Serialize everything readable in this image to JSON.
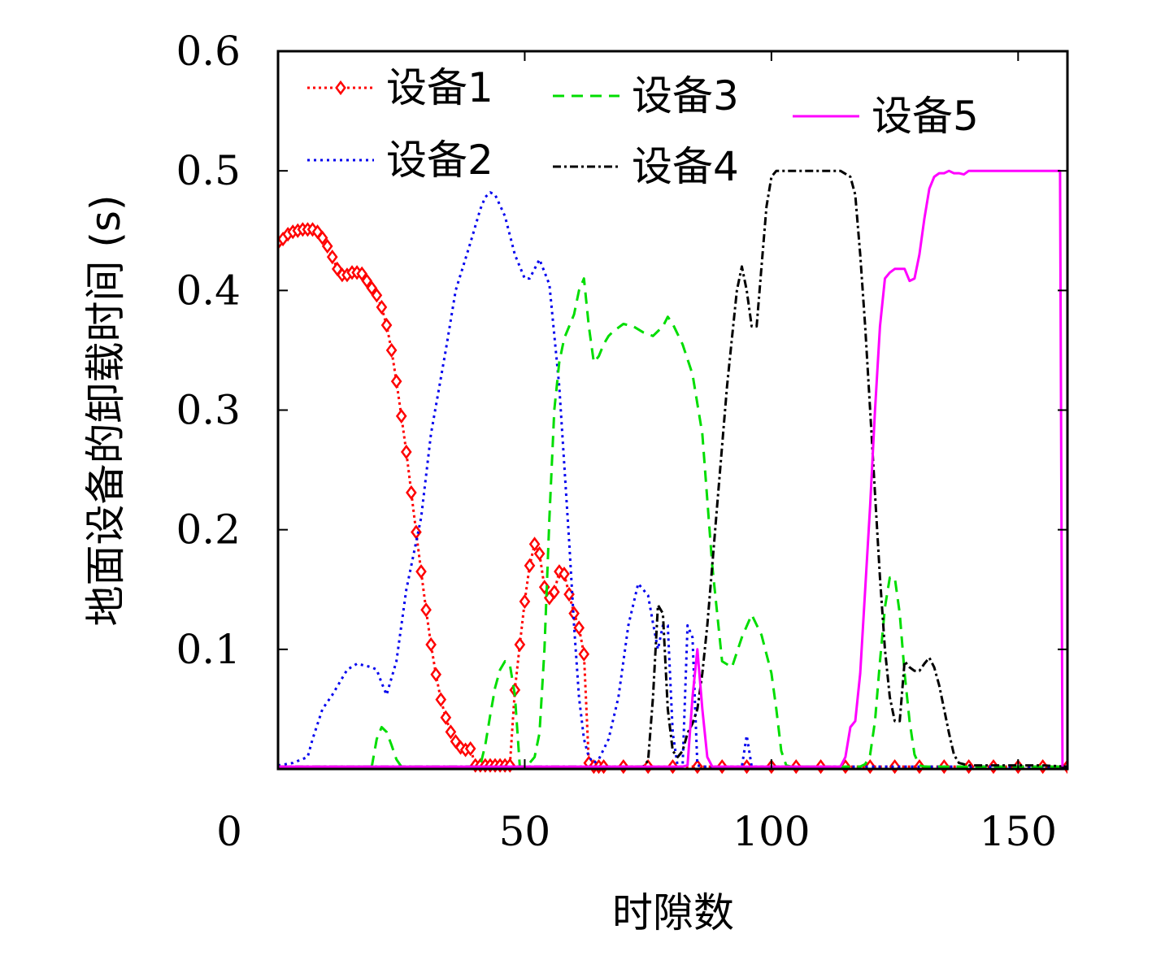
{
  "chart_data": {
    "type": "line",
    "xlabel": "时隙数",
    "ylabel": "地面设备的卸载时间 (s)",
    "xlim": [
      0,
      160
    ],
    "ylim": [
      0,
      0.6
    ],
    "xticks": [
      {
        "value": 0,
        "label": "0"
      },
      {
        "value": 50,
        "label": "50"
      },
      {
        "value": 100,
        "label": "100"
      },
      {
        "value": 150,
        "label": "150"
      }
    ],
    "yticks": [
      {
        "value": 0.1,
        "label": "0.1"
      },
      {
        "value": 0.2,
        "label": "0.2"
      },
      {
        "value": 0.3,
        "label": "0.3"
      },
      {
        "value": 0.4,
        "label": "0.4"
      },
      {
        "value": 0.5,
        "label": "0.5"
      },
      {
        "value": 0.6,
        "label": "0.6"
      }
    ],
    "grid": false,
    "legend_placement": "top",
    "series": [
      {
        "name": "设备1",
        "color": "#ff0000",
        "dash": "3,4",
        "marker": "diamond",
        "x": [
          0,
          1,
          2,
          3,
          4,
          5,
          6,
          7,
          8,
          9,
          10,
          11,
          12,
          13,
          14,
          15,
          16,
          17,
          18,
          19,
          20,
          21,
          22,
          23,
          24,
          25,
          26,
          27,
          28,
          29,
          30,
          31,
          32,
          33,
          34,
          35,
          36,
          37,
          38,
          39,
          40,
          41,
          42,
          43,
          44,
          45,
          46,
          47,
          48,
          49,
          50,
          51,
          52,
          53,
          54,
          55,
          56,
          57,
          58,
          59,
          60,
          61,
          62,
          63,
          64,
          65,
          66,
          70,
          75,
          80,
          85,
          90,
          95,
          100,
          105,
          110,
          115,
          120,
          125,
          130,
          135,
          140,
          145,
          150,
          155,
          160
        ],
        "y": [
          0.44,
          0.443,
          0.447,
          0.449,
          0.45,
          0.451,
          0.451,
          0.451,
          0.449,
          0.444,
          0.437,
          0.428,
          0.418,
          0.413,
          0.413,
          0.415,
          0.415,
          0.414,
          0.408,
          0.402,
          0.396,
          0.386,
          0.371,
          0.35,
          0.324,
          0.295,
          0.265,
          0.231,
          0.198,
          0.165,
          0.133,
          0.104,
          0.079,
          0.058,
          0.043,
          0.031,
          0.023,
          0.018,
          0.016,
          0.017,
          0.003,
          0.003,
          0.003,
          0.003,
          0.003,
          0.003,
          0.003,
          0.003,
          0.066,
          0.104,
          0.14,
          0.17,
          0.188,
          0.18,
          0.152,
          0.143,
          0.148,
          0.165,
          0.163,
          0.146,
          0.13,
          0.118,
          0.096,
          0.005,
          0.002,
          0.002,
          0.002,
          0.002,
          0.002,
          0.002,
          0.002,
          0.002,
          0.002,
          0.002,
          0.002,
          0.002,
          0.002,
          0.002,
          0.002,
          0.002,
          0.002,
          0.002,
          0.002,
          0.002,
          0.002,
          0.002
        ]
      },
      {
        "name": "设备2",
        "color": "#0000ee",
        "dash": "3,5",
        "marker": "none",
        "x": [
          0,
          3,
          6,
          7,
          9,
          11,
          14,
          16,
          19,
          20,
          21,
          22,
          24,
          26,
          29,
          31,
          34,
          36,
          39,
          41,
          42,
          43,
          44,
          46,
          48,
          50,
          51,
          53,
          55,
          57,
          59,
          60,
          61,
          62,
          63,
          64,
          65,
          67,
          69,
          71,
          73,
          75,
          76,
          77,
          78,
          79,
          80,
          81,
          82,
          83,
          84,
          85,
          86,
          87,
          88,
          90,
          92,
          94,
          95,
          96,
          100,
          120,
          140,
          160
        ],
        "y": [
          0.003,
          0.005,
          0.01,
          0.025,
          0.05,
          0.062,
          0.083,
          0.088,
          0.085,
          0.083,
          0.072,
          0.062,
          0.09,
          0.15,
          0.21,
          0.28,
          0.35,
          0.4,
          0.44,
          0.468,
          0.478,
          0.482,
          0.48,
          0.462,
          0.43,
          0.41,
          0.41,
          0.426,
          0.405,
          0.32,
          0.19,
          0.12,
          0.06,
          0.025,
          0.01,
          0.005,
          0.008,
          0.025,
          0.06,
          0.12,
          0.155,
          0.145,
          0.122,
          0.1,
          0.12,
          0.12,
          0.03,
          0.002,
          0.002,
          0.12,
          0.11,
          0.003,
          0.002,
          0.002,
          0.002,
          0.002,
          0.002,
          0.002,
          0.028,
          0.002,
          0.002,
          0.002,
          0.002,
          0.002
        ]
      },
      {
        "name": "设备3",
        "color": "#00dd00",
        "dash": "14,9",
        "marker": "none",
        "x": [
          0,
          19,
          20,
          21,
          22,
          23,
          24,
          25,
          40,
          41,
          42,
          43,
          44,
          45,
          46,
          47,
          48,
          49,
          50,
          51,
          52,
          53,
          54,
          55,
          56,
          57,
          58,
          59,
          60,
          61,
          62,
          63,
          64,
          65,
          66,
          67,
          68,
          70,
          72,
          74,
          76,
          78,
          79,
          80,
          82,
          84,
          86,
          88,
          90,
          92,
          94,
          96,
          98,
          100,
          101,
          102,
          103,
          104,
          105,
          106,
          107,
          108,
          109,
          110,
          111,
          112,
          113,
          114,
          115,
          116,
          117,
          118,
          119,
          120,
          121,
          122,
          123,
          124,
          125,
          126,
          127,
          128,
          129,
          130,
          131,
          132,
          133,
          134,
          135,
          136,
          137,
          138,
          140,
          145,
          150,
          155,
          160
        ],
        "y": [
          0.002,
          0.002,
          0.025,
          0.035,
          0.031,
          0.02,
          0.008,
          0.002,
          0.002,
          0.003,
          0.02,
          0.045,
          0.068,
          0.083,
          0.09,
          0.087,
          0.062,
          0.002,
          0.002,
          0.005,
          0.01,
          0.03,
          0.1,
          0.21,
          0.3,
          0.34,
          0.36,
          0.37,
          0.38,
          0.4,
          0.41,
          0.37,
          0.34,
          0.345,
          0.355,
          0.362,
          0.366,
          0.372,
          0.37,
          0.365,
          0.362,
          0.37,
          0.378,
          0.372,
          0.355,
          0.33,
          0.28,
          0.17,
          0.09,
          0.085,
          0.11,
          0.129,
          0.112,
          0.08,
          0.05,
          0.015,
          0.003,
          0.002,
          0.002,
          0.002,
          0.002,
          0.002,
          0.002,
          0.002,
          0.002,
          0.002,
          0.002,
          0.002,
          0.002,
          0.002,
          0.002,
          0.002,
          0.004,
          0.012,
          0.04,
          0.09,
          0.135,
          0.16,
          0.16,
          0.13,
          0.08,
          0.04,
          0.012,
          0.003,
          0.002,
          0.002,
          0.002,
          0.002,
          0.002,
          0.002,
          0.002,
          0.002,
          0.002,
          0.002,
          0.002,
          0.002,
          0.002
        ]
      },
      {
        "name": "设备4",
        "color": "#000000",
        "dash": "10,4,3,4",
        "marker": "none",
        "x": [
          0,
          74,
          75,
          76,
          77,
          78,
          79,
          80,
          81,
          82,
          83,
          84,
          85,
          86,
          87,
          88,
          89,
          90,
          91,
          92,
          93,
          94,
          95,
          96,
          97,
          98,
          99,
          100,
          101,
          102,
          104,
          106,
          108,
          110,
          112,
          114,
          116,
          117,
          118,
          119,
          120,
          121,
          122,
          123,
          124,
          125,
          126,
          127,
          128,
          129,
          130,
          131,
          132,
          133,
          134,
          135,
          136,
          137,
          138,
          140,
          145,
          150,
          155,
          160
        ],
        "y": [
          0.002,
          0.002,
          0.007,
          0.06,
          0.137,
          0.13,
          0.05,
          0.015,
          0.01,
          0.015,
          0.03,
          0.038,
          0.05,
          0.08,
          0.12,
          0.17,
          0.22,
          0.27,
          0.32,
          0.36,
          0.4,
          0.42,
          0.4,
          0.37,
          0.37,
          0.42,
          0.47,
          0.495,
          0.5,
          0.5,
          0.5,
          0.5,
          0.5,
          0.5,
          0.5,
          0.5,
          0.495,
          0.48,
          0.43,
          0.37,
          0.3,
          0.23,
          0.16,
          0.1,
          0.06,
          0.04,
          0.04,
          0.09,
          0.085,
          0.082,
          0.082,
          0.088,
          0.093,
          0.085,
          0.07,
          0.05,
          0.03,
          0.012,
          0.005,
          0.003,
          0.003,
          0.003,
          0.003,
          0.002
        ]
      },
      {
        "name": "设备5",
        "color": "#ff00ff",
        "dash": "",
        "marker": "none",
        "x": [
          0,
          82,
          83,
          84,
          85,
          86,
          87,
          88,
          89,
          114,
          115,
          116,
          117,
          118,
          119,
          120,
          121,
          122,
          123,
          124,
          125,
          126,
          127,
          128,
          129,
          130,
          131,
          132,
          133,
          134,
          135,
          136,
          137,
          138,
          139,
          140,
          141,
          142,
          143,
          144,
          145,
          146,
          147,
          148,
          149,
          150,
          151,
          152,
          153,
          154,
          155,
          156,
          157,
          158,
          158.5,
          159
        ],
        "y": [
          0.002,
          0.002,
          0.003,
          0.06,
          0.1,
          0.05,
          0.01,
          0.002,
          0.002,
          0.002,
          0.01,
          0.035,
          0.04,
          0.08,
          0.15,
          0.22,
          0.3,
          0.37,
          0.41,
          0.415,
          0.418,
          0.418,
          0.418,
          0.408,
          0.41,
          0.43,
          0.46,
          0.485,
          0.495,
          0.498,
          0.498,
          0.5,
          0.498,
          0.498,
          0.497,
          0.5,
          0.5,
          0.5,
          0.5,
          0.5,
          0.5,
          0.5,
          0.5,
          0.5,
          0.5,
          0.5,
          0.5,
          0.5,
          0.5,
          0.5,
          0.5,
          0.5,
          0.5,
          0.5,
          0.5,
          0.002
        ]
      }
    ]
  }
}
